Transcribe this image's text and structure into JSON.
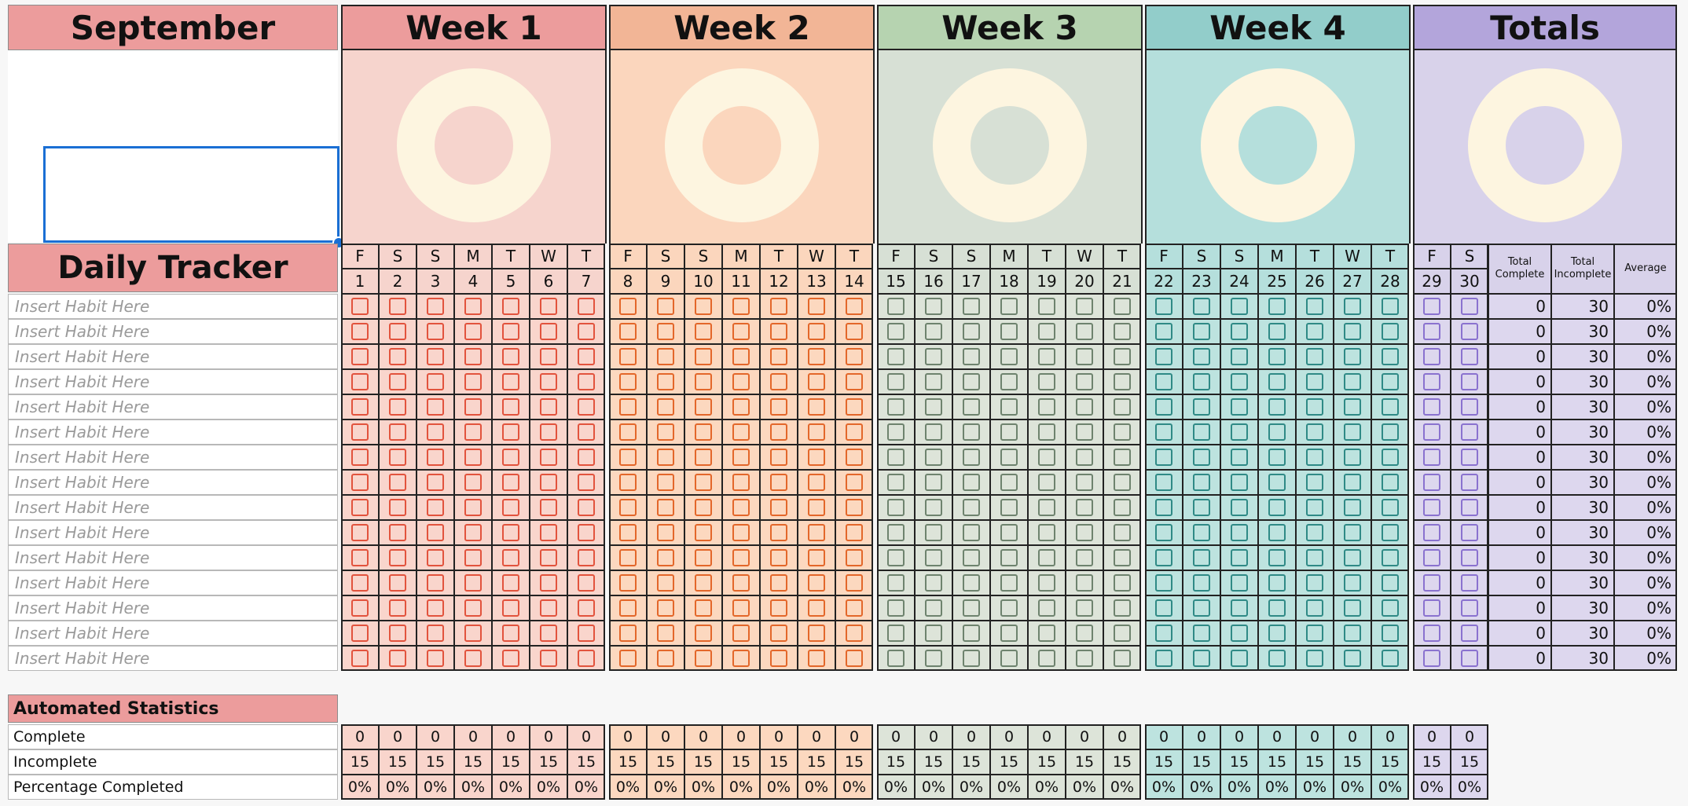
{
  "month": "September",
  "tracker_title": "Daily Tracker",
  "habit_placeholder": "Insert Habit Here",
  "habit_rows": 15,
  "weeks": [
    {
      "label": "Week 1",
      "days": [
        1,
        2,
        3,
        4,
        5,
        6,
        7
      ],
      "letters": [
        "F",
        "S",
        "S",
        "M",
        "T",
        "W",
        "T"
      ],
      "header": "#ec9c9c",
      "bg": "#f6d4cd",
      "cell": "#f9d5cc",
      "box": "#e2533d",
      "donut_inner": "#f6d4cd"
    },
    {
      "label": "Week 2",
      "days": [
        8,
        9,
        10,
        11,
        12,
        13,
        14
      ],
      "letters": [
        "F",
        "S",
        "S",
        "M",
        "T",
        "W",
        "T"
      ],
      "header": "#f2b596",
      "bg": "#fbd6bd",
      "cell": "#fcd8bf",
      "box": "#e3672a",
      "donut_inner": "#fbd6bd"
    },
    {
      "label": "Week 3",
      "days": [
        15,
        16,
        17,
        18,
        19,
        20,
        21
      ],
      "letters": [
        "F",
        "S",
        "S",
        "M",
        "T",
        "W",
        "T"
      ],
      "header": "#b6d3b0",
      "bg": "#d7e0d5",
      "cell": "#dde4d9",
      "box": "#6e836e",
      "donut_inner": "#d7e0d5"
    },
    {
      "label": "Week 4",
      "days": [
        22,
        23,
        24,
        25,
        26,
        27,
        28
      ],
      "letters": [
        "F",
        "S",
        "S",
        "M",
        "T",
        "W",
        "T"
      ],
      "header": "#92cdca",
      "bg": "#b5dfdc",
      "cell": "#bde3df",
      "box": "#2f8a86",
      "donut_inner": "#b5dfdc"
    }
  ],
  "totals": {
    "label": "Totals",
    "days": [
      29,
      30
    ],
    "letters": [
      "F",
      "S"
    ],
    "header": "#b3a5db",
    "bg": "#d8d2ea",
    "cell": "#ddd7ee",
    "box": "#8a72cf",
    "donut_inner": "#d8d2ea",
    "col_complete": "Total Complete",
    "col_incomplete": "Total Incomplete",
    "col_average": "Average",
    "row_complete": "0",
    "row_incomplete": "30",
    "row_average": "0%"
  },
  "donut_ring_color": "#fdf5e0",
  "stats": {
    "title": "Automated Statistics",
    "title_bg": "#ec9c9c",
    "labels": [
      "Complete",
      "Incomplete",
      "Percentage Completed"
    ],
    "complete_value": "0",
    "incomplete_value": "15",
    "percent_value": "0%"
  },
  "selection_color": "#1a6fd4"
}
